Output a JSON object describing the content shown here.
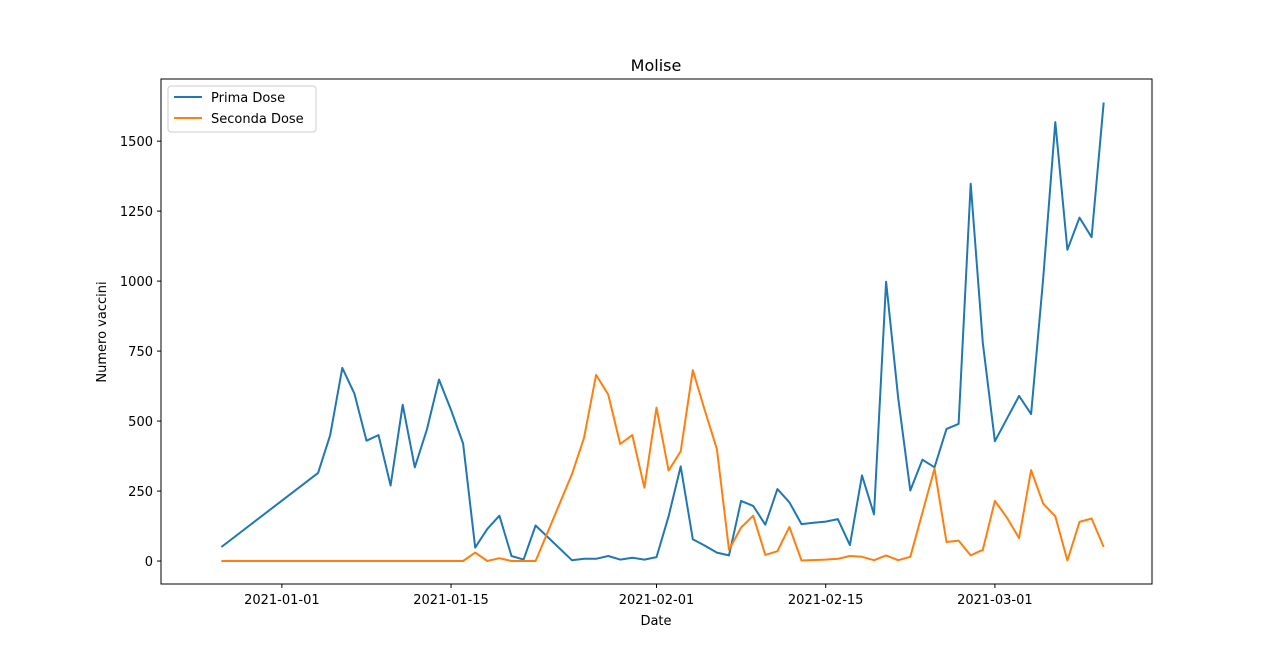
{
  "chart_data": {
    "type": "line",
    "title": "Molise",
    "xlabel": "Date",
    "ylabel": "Numero vaccini",
    "x_axis": "date",
    "x_ticks": [
      "2021-01-01",
      "2021-01-15",
      "2021-02-01",
      "2021-02-15",
      "2021-03-01"
    ],
    "y_ticks": [
      0,
      250,
      500,
      750,
      1000,
      1250,
      1500
    ],
    "xlim": [
      "2021-12-21",
      "2021-03-12"
    ],
    "ylim": [
      -82,
      1722
    ],
    "grid": false,
    "legend": "top-left",
    "series": [
      {
        "name": "Prima Dose",
        "color": "#1f77b4",
        "points": [
          [
            "2020-12-27",
            50
          ],
          [
            "2021-01-04",
            315
          ],
          [
            "2021-01-05",
            450
          ],
          [
            "2021-01-06",
            690
          ],
          [
            "2021-01-07",
            598
          ],
          [
            "2021-01-08",
            430
          ],
          [
            "2021-01-09",
            450
          ],
          [
            "2021-01-10",
            270
          ],
          [
            "2021-01-11",
            558
          ],
          [
            "2021-01-12",
            335
          ],
          [
            "2021-01-13",
            470
          ],
          [
            "2021-01-14",
            648
          ],
          [
            "2021-01-15",
            540
          ],
          [
            "2021-01-16",
            420
          ],
          [
            "2021-01-17",
            48
          ],
          [
            "2021-01-18",
            115
          ],
          [
            "2021-01-19",
            162
          ],
          [
            "2021-01-20",
            18
          ],
          [
            "2021-01-21",
            5
          ],
          [
            "2021-01-22",
            127
          ],
          [
            "2021-01-25",
            3
          ],
          [
            "2021-01-26",
            8
          ],
          [
            "2021-01-27",
            8
          ],
          [
            "2021-01-28",
            18
          ],
          [
            "2021-01-29",
            5
          ],
          [
            "2021-01-30",
            12
          ],
          [
            "2021-01-31",
            5
          ],
          [
            "2021-02-01",
            14
          ],
          [
            "2021-02-02",
            160
          ],
          [
            "2021-02-03",
            338
          ],
          [
            "2021-02-04",
            78
          ],
          [
            "2021-02-05",
            55
          ],
          [
            "2021-02-06",
            30
          ],
          [
            "2021-02-07",
            20
          ],
          [
            "2021-02-08",
            215
          ],
          [
            "2021-02-09",
            197
          ],
          [
            "2021-02-10",
            130
          ],
          [
            "2021-02-11",
            257
          ],
          [
            "2021-02-12",
            210
          ],
          [
            "2021-02-13",
            132
          ],
          [
            "2021-02-14",
            137
          ],
          [
            "2021-02-15",
            141
          ],
          [
            "2021-02-16",
            150
          ],
          [
            "2021-02-17",
            57
          ],
          [
            "2021-02-18",
            306
          ],
          [
            "2021-02-19",
            167
          ],
          [
            "2021-02-20",
            998
          ],
          [
            "2021-02-21",
            582
          ],
          [
            "2021-02-22",
            252
          ],
          [
            "2021-02-23",
            362
          ],
          [
            "2021-02-24",
            335
          ],
          [
            "2021-02-25",
            472
          ],
          [
            "2021-02-26",
            490
          ],
          [
            "2021-02-27",
            1348
          ],
          [
            "2021-02-28",
            780
          ],
          [
            "2021-03-01",
            428
          ],
          [
            "2021-03-03",
            590
          ],
          [
            "2021-03-04",
            525
          ],
          [
            "2021-03-05",
            1010
          ],
          [
            "2021-03-06",
            1568
          ],
          [
            "2021-03-07",
            1112
          ],
          [
            "2021-03-08",
            1227
          ],
          [
            "2021-03-09",
            1157
          ],
          [
            "2021-03-10",
            1638
          ]
        ]
      },
      {
        "name": "Seconda Dose",
        "color": "#ff7f0e",
        "points": [
          [
            "2020-12-27",
            0
          ],
          [
            "2021-01-16",
            0
          ],
          [
            "2021-01-17",
            30
          ],
          [
            "2021-01-18",
            0
          ],
          [
            "2021-01-19",
            10
          ],
          [
            "2021-01-20",
            0
          ],
          [
            "2021-01-21",
            0
          ],
          [
            "2021-01-22",
            0
          ],
          [
            "2021-01-25",
            310
          ],
          [
            "2021-01-26",
            440
          ],
          [
            "2021-01-27",
            665
          ],
          [
            "2021-01-28",
            595
          ],
          [
            "2021-01-29",
            418
          ],
          [
            "2021-01-30",
            450
          ],
          [
            "2021-01-31",
            262
          ],
          [
            "2021-02-01",
            548
          ],
          [
            "2021-02-02",
            323
          ],
          [
            "2021-02-03",
            392
          ],
          [
            "2021-02-04",
            682
          ],
          [
            "2021-02-05",
            538
          ],
          [
            "2021-02-06",
            400
          ],
          [
            "2021-02-07",
            40
          ],
          [
            "2021-02-08",
            120
          ],
          [
            "2021-02-09",
            162
          ],
          [
            "2021-02-10",
            22
          ],
          [
            "2021-02-11",
            35
          ],
          [
            "2021-02-12",
            122
          ],
          [
            "2021-02-13",
            2
          ],
          [
            "2021-02-15",
            5
          ],
          [
            "2021-02-16",
            8
          ],
          [
            "2021-02-17",
            18
          ],
          [
            "2021-02-18",
            15
          ],
          [
            "2021-02-19",
            3
          ],
          [
            "2021-02-20",
            20
          ],
          [
            "2021-02-21",
            3
          ],
          [
            "2021-02-22",
            15
          ],
          [
            "2021-02-24",
            330
          ],
          [
            "2021-02-25",
            68
          ],
          [
            "2021-02-26",
            73
          ],
          [
            "2021-02-27",
            20
          ],
          [
            "2021-02-28",
            40
          ],
          [
            "2021-03-01",
            215
          ],
          [
            "2021-03-02",
            155
          ],
          [
            "2021-03-03",
            82
          ],
          [
            "2021-03-04",
            325
          ],
          [
            "2021-03-05",
            205
          ],
          [
            "2021-03-06",
            160
          ],
          [
            "2021-03-07",
            2
          ],
          [
            "2021-03-08",
            140
          ],
          [
            "2021-03-09",
            152
          ],
          [
            "2021-03-10",
            50
          ]
        ]
      }
    ]
  }
}
